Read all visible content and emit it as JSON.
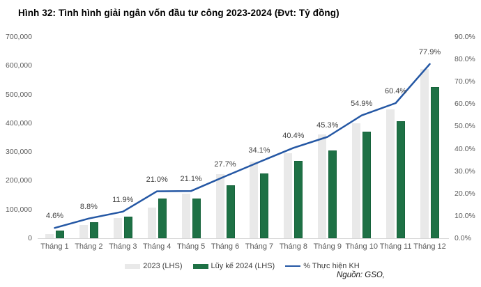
{
  "title": "Hình 32: Tình hình giải ngân vốn đầu tư công 2023-2024 (Đvt: Tỷ đồng)",
  "source": "Nguồn: GSO,",
  "chart_data": {
    "type": "bar",
    "subtype": "combo-bar-line",
    "title": "Hình 32: Tình hình giải ngân vốn đầu tư công 2023-2024 (Đvt: Tỷ đồng)",
    "unit_note": "Đvt: Tỷ đồng",
    "categories": [
      "Tháng 1",
      "Tháng 2",
      "Tháng 3",
      "Tháng 4",
      "Tháng 5",
      "Tháng 6",
      "Tháng 7",
      "Tháng 8",
      "Tháng 9",
      "Tháng 10",
      "Tháng 11",
      "Tháng 12"
    ],
    "series": [
      {
        "name": "2023 (LHS)",
        "kind": "bar",
        "axis": "left",
        "color": "#e9e9e9",
        "values": [
          15000,
          45000,
          71000,
          106000,
          156000,
          223000,
          266000,
          296000,
          362000,
          400000,
          449000,
          589000
        ]
      },
      {
        "name": "Lũy kế 2024 (LHS)",
        "kind": "bar",
        "axis": "left",
        "color": "#1e7145",
        "values": [
          27000,
          56000,
          76000,
          137000,
          138000,
          184000,
          226000,
          270000,
          305000,
          371000,
          407000,
          526000
        ]
      },
      {
        "name": "% Thực hiện KH",
        "kind": "line",
        "axis": "right",
        "color": "#2457a4",
        "values": [
          4.6,
          8.8,
          11.9,
          21.0,
          21.1,
          27.7,
          34.1,
          40.4,
          45.3,
          54.9,
          60.4,
          77.9
        ],
        "point_labels": [
          "4.6%",
          "8.8%",
          "11.9%",
          "21.0%",
          "21.1%",
          "27.7%",
          "34.1%",
          "40.4%",
          "45.3%",
          "54.9%",
          "60.4%",
          "77.9%"
        ]
      }
    ],
    "left_axis": {
      "min": 0,
      "max": 700000,
      "step": 100000,
      "tick_labels": [
        "0",
        "100,000",
        "200,000",
        "300,000",
        "400,000",
        "500,000",
        "600,000",
        "700,000"
      ]
    },
    "right_axis": {
      "min": 0,
      "max": 90,
      "step": 10,
      "tick_labels": [
        "0.0%",
        "10.0%",
        "20.0%",
        "30.0%",
        "40.0%",
        "50.0%",
        "60.0%",
        "70.0%",
        "80.0%",
        "90.0%"
      ]
    },
    "grid": false,
    "legend_position": "bottom",
    "colors": {
      "axis_line": "#d7d7d7",
      "tick_text": "#595959",
      "data_label_text": "#404040",
      "title_text": "#000000"
    }
  }
}
